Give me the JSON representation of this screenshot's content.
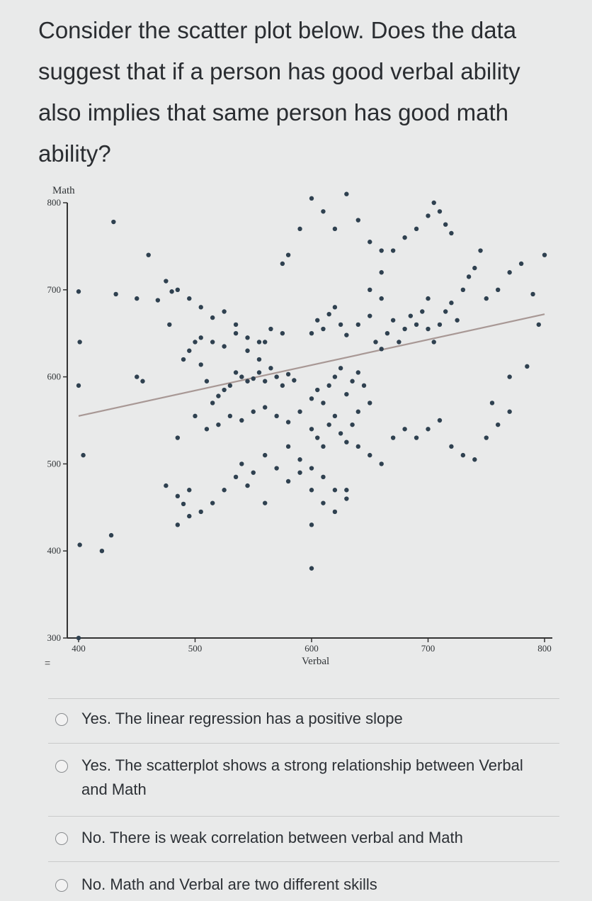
{
  "question": "Consider the scatter plot below. Does the data suggest that if a person has good verbal ability also implies that same person has good math ability?",
  "chart_data": {
    "type": "scatter",
    "xlabel": "Verbal",
    "ylabel": "Math",
    "xlim": [
      400,
      800
    ],
    "ylim": [
      300,
      800
    ],
    "xticks": [
      "400",
      "500",
      "600",
      "700",
      "800"
    ],
    "yticks": [
      "300",
      "400",
      "500",
      "600",
      "700",
      "800"
    ],
    "grid": false,
    "regression_line": {
      "x": [
        400,
        800
      ],
      "y": [
        555,
        672
      ]
    },
    "points": [
      [
        400,
        300
      ],
      [
        401,
        407
      ],
      [
        400,
        590
      ],
      [
        401,
        640
      ],
      [
        400,
        698
      ],
      [
        404,
        510
      ],
      [
        420,
        400
      ],
      [
        428,
        418
      ],
      [
        430,
        778
      ],
      [
        432,
        695
      ],
      [
        450,
        690
      ],
      [
        450,
        600
      ],
      [
        455,
        595
      ],
      [
        460,
        740
      ],
      [
        468,
        688
      ],
      [
        478,
        660
      ],
      [
        480,
        698
      ],
      [
        475,
        475
      ],
      [
        485,
        463
      ],
      [
        490,
        454
      ],
      [
        495,
        470
      ],
      [
        485,
        530
      ],
      [
        500,
        640
      ],
      [
        505,
        614
      ],
      [
        510,
        595
      ],
      [
        515,
        570
      ],
      [
        520,
        578
      ],
      [
        525,
        585
      ],
      [
        530,
        590
      ],
      [
        535,
        605
      ],
      [
        540,
        600
      ],
      [
        545,
        595
      ],
      [
        550,
        598
      ],
      [
        555,
        605
      ],
      [
        560,
        595
      ],
      [
        565,
        610
      ],
      [
        570,
        600
      ],
      [
        575,
        590
      ],
      [
        580,
        603
      ],
      [
        585,
        596
      ],
      [
        490,
        620
      ],
      [
        495,
        630
      ],
      [
        505,
        645
      ],
      [
        515,
        640
      ],
      [
        525,
        635
      ],
      [
        535,
        650
      ],
      [
        545,
        645
      ],
      [
        555,
        640
      ],
      [
        565,
        655
      ],
      [
        575,
        650
      ],
      [
        500,
        555
      ],
      [
        510,
        540
      ],
      [
        520,
        545
      ],
      [
        530,
        555
      ],
      [
        540,
        550
      ],
      [
        550,
        560
      ],
      [
        560,
        565
      ],
      [
        570,
        555
      ],
      [
        580,
        548
      ],
      [
        590,
        560
      ],
      [
        600,
        575
      ],
      [
        605,
        585
      ],
      [
        610,
        570
      ],
      [
        615,
        590
      ],
      [
        620,
        600
      ],
      [
        625,
        610
      ],
      [
        630,
        580
      ],
      [
        635,
        595
      ],
      [
        640,
        605
      ],
      [
        645,
        590
      ],
      [
        600,
        540
      ],
      [
        605,
        530
      ],
      [
        610,
        520
      ],
      [
        615,
        545
      ],
      [
        620,
        555
      ],
      [
        625,
        535
      ],
      [
        630,
        525
      ],
      [
        635,
        545
      ],
      [
        640,
        560
      ],
      [
        650,
        570
      ],
      [
        600,
        650
      ],
      [
        605,
        665
      ],
      [
        610,
        655
      ],
      [
        615,
        672
      ],
      [
        620,
        680
      ],
      [
        625,
        660
      ],
      [
        630,
        648
      ],
      [
        640,
        660
      ],
      [
        650,
        670
      ],
      [
        660,
        690
      ],
      [
        655,
        640
      ],
      [
        660,
        632
      ],
      [
        665,
        650
      ],
      [
        670,
        665
      ],
      [
        675,
        640
      ],
      [
        680,
        655
      ],
      [
        685,
        670
      ],
      [
        690,
        660
      ],
      [
        695,
        675
      ],
      [
        700,
        690
      ],
      [
        700,
        655
      ],
      [
        705,
        640
      ],
      [
        710,
        660
      ],
      [
        715,
        675
      ],
      [
        720,
        685
      ],
      [
        725,
        665
      ],
      [
        730,
        700
      ],
      [
        735,
        715
      ],
      [
        740,
        725
      ],
      [
        745,
        745
      ],
      [
        750,
        690
      ],
      [
        760,
        700
      ],
      [
        770,
        720
      ],
      [
        780,
        730
      ],
      [
        790,
        695
      ],
      [
        800,
        740
      ],
      [
        795,
        660
      ],
      [
        785,
        612
      ],
      [
        770,
        600
      ],
      [
        755,
        570
      ],
      [
        650,
        700
      ],
      [
        660,
        720
      ],
      [
        670,
        745
      ],
      [
        680,
        760
      ],
      [
        690,
        770
      ],
      [
        700,
        785
      ],
      [
        705,
        800
      ],
      [
        710,
        790
      ],
      [
        715,
        775
      ],
      [
        720,
        765
      ],
      [
        610,
        790
      ],
      [
        620,
        770
      ],
      [
        630,
        810
      ],
      [
        640,
        780
      ],
      [
        650,
        755
      ],
      [
        660,
        745
      ],
      [
        600,
        805
      ],
      [
        590,
        770
      ],
      [
        580,
        740
      ],
      [
        575,
        730
      ],
      [
        560,
        640
      ],
      [
        555,
        620
      ],
      [
        545,
        630
      ],
      [
        535,
        660
      ],
      [
        525,
        675
      ],
      [
        515,
        668
      ],
      [
        505,
        680
      ],
      [
        495,
        690
      ],
      [
        485,
        700
      ],
      [
        475,
        710
      ],
      [
        580,
        520
      ],
      [
        590,
        505
      ],
      [
        600,
        495
      ],
      [
        610,
        485
      ],
      [
        620,
        470
      ],
      [
        630,
        460
      ],
      [
        640,
        520
      ],
      [
        650,
        510
      ],
      [
        660,
        500
      ],
      [
        670,
        530
      ],
      [
        680,
        540
      ],
      [
        690,
        530
      ],
      [
        700,
        540
      ],
      [
        710,
        550
      ],
      [
        720,
        520
      ],
      [
        730,
        510
      ],
      [
        740,
        505
      ],
      [
        750,
        530
      ],
      [
        760,
        545
      ],
      [
        770,
        560
      ],
      [
        540,
        500
      ],
      [
        550,
        490
      ],
      [
        560,
        510
      ],
      [
        570,
        495
      ],
      [
        580,
        480
      ],
      [
        590,
        490
      ],
      [
        600,
        470
      ],
      [
        610,
        455
      ],
      [
        620,
        445
      ],
      [
        630,
        470
      ],
      [
        600,
        380
      ],
      [
        600,
        430
      ],
      [
        560,
        455
      ],
      [
        545,
        475
      ],
      [
        535,
        485
      ],
      [
        525,
        470
      ],
      [
        515,
        455
      ],
      [
        505,
        445
      ],
      [
        495,
        440
      ],
      [
        485,
        430
      ]
    ]
  },
  "options": [
    {
      "label": "Yes. The linear regression has a positive slope"
    },
    {
      "label": "Yes. The scatterplot shows a strong relationship between Verbal and Math"
    },
    {
      "label": "No. There is weak correlation between verbal and Math"
    },
    {
      "label": "No. Math and Verbal are two different skills"
    }
  ]
}
